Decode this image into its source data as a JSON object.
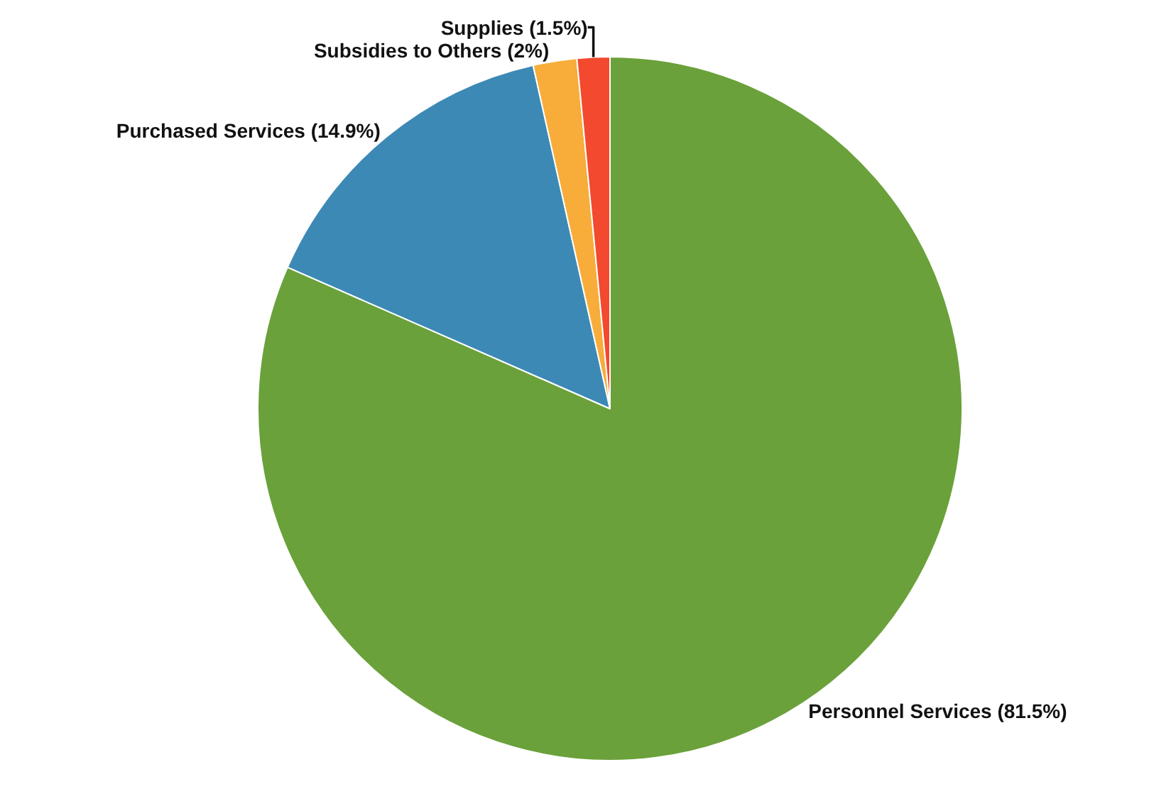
{
  "chart_data": {
    "type": "pie",
    "categories": [
      "Personnel Services",
      "Purchased Services",
      "Subsidies to Others",
      "Supplies"
    ],
    "values": [
      81.5,
      14.9,
      2,
      1.5
    ],
    "value_labels": [
      "(81.5%)",
      "(14.9%)",
      "(2%)",
      "(1.5%)"
    ],
    "colors": [
      "#6aa13a",
      "#3c89b6",
      "#f8ac3a",
      "#f2492f"
    ],
    "legend": false
  }
}
